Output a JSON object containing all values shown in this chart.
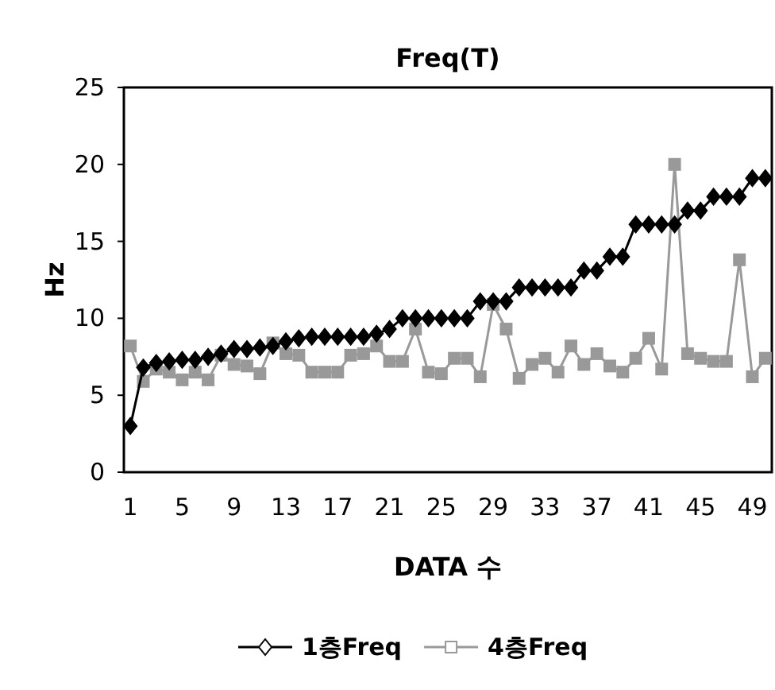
{
  "chart_data": {
    "type": "line",
    "title": "Freq(T)",
    "xlabel": "DATA 수",
    "ylabel": "Hz",
    "categories": [
      "1",
      null,
      null,
      null,
      "5",
      null,
      null,
      null,
      "9",
      null,
      null,
      null,
      "13",
      null,
      null,
      null,
      "17",
      null,
      null,
      null,
      "21",
      null,
      null,
      null,
      "25",
      null,
      null,
      null,
      "29",
      null,
      null,
      null,
      "33",
      null,
      null,
      null,
      "37",
      null,
      null,
      null,
      "41",
      null,
      null,
      null,
      "45",
      null,
      null,
      null,
      "49",
      null
    ],
    "series": [
      {
        "name": "1층Freq",
        "color": "#000000",
        "marker": "diamond",
        "values": [
          3,
          6.8,
          7.1,
          7.2,
          7.3,
          7.3,
          7.5,
          7.7,
          8,
          8,
          8.1,
          8.2,
          8.5,
          8.7,
          8.8,
          8.8,
          8.8,
          8.8,
          8.8,
          9,
          9.3,
          10,
          10,
          10,
          10,
          10,
          10,
          11.1,
          11.1,
          11.1,
          12,
          12,
          12,
          12,
          12,
          13.1,
          13.1,
          14,
          14,
          16.1,
          16.1,
          16.1,
          16.1,
          17,
          17,
          17.9,
          17.9,
          17.9,
          19.1,
          19.1
        ]
      },
      {
        "name": "4층Freq",
        "color": "#999999",
        "marker": "square",
        "values": [
          8.2,
          5.9,
          6.7,
          6.5,
          6,
          6.5,
          6,
          7.6,
          7,
          6.9,
          6.4,
          8.4,
          7.7,
          7.6,
          6.5,
          6.5,
          6.5,
          7.6,
          7.7,
          8.2,
          7.2,
          7.2,
          9.3,
          6.5,
          6.4,
          7.4,
          7.4,
          6.2,
          10.9,
          9.3,
          6.1,
          7,
          7.4,
          6.5,
          8.2,
          7,
          7.7,
          6.9,
          6.5,
          7.4,
          8.7,
          6.7,
          20,
          7.7,
          7.4,
          7.2,
          7.2,
          13.8,
          6.2,
          7.4
        ]
      }
    ],
    "ylim": [
      0,
      25
    ],
    "yticks": [
      0,
      5,
      10,
      15,
      20,
      25
    ],
    "grid": false,
    "legend": "bottom"
  }
}
